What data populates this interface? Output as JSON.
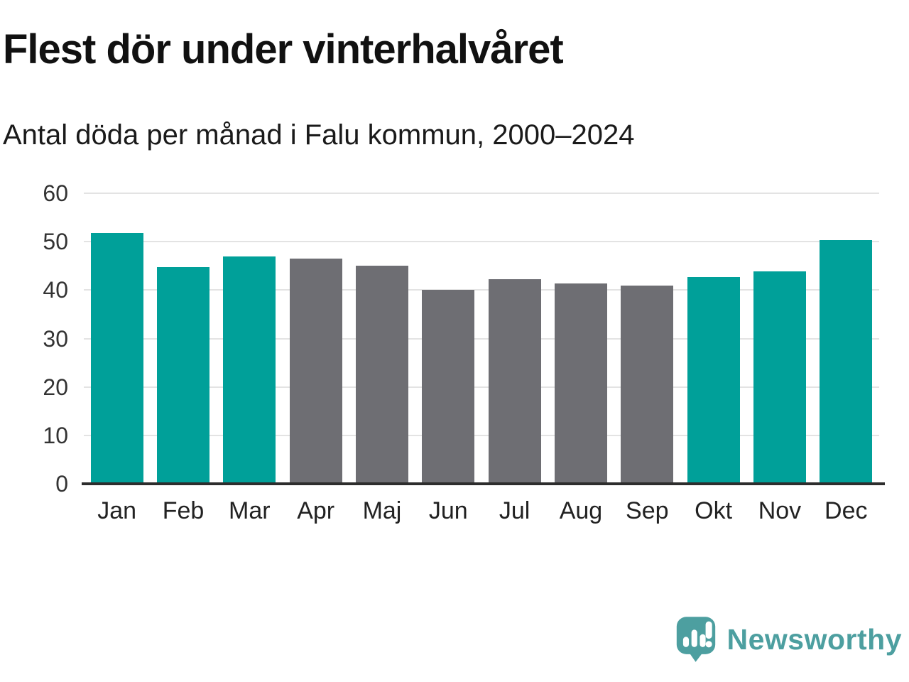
{
  "header": {
    "title": "Flest dör under vinterhalvåret",
    "subtitle": "Antal döda per månad i Falu kommun, 2000–2024"
  },
  "chart_data": {
    "type": "bar",
    "title": "Flest dör under vinterhalvåret",
    "subtitle": "Antal döda per månad i Falu kommun, 2000–2024",
    "categories": [
      "Jan",
      "Feb",
      "Mar",
      "Apr",
      "Maj",
      "Jun",
      "Jul",
      "Aug",
      "Sep",
      "Okt",
      "Nov",
      "Dec"
    ],
    "values": [
      51.8,
      44.7,
      46.9,
      46.5,
      45.0,
      40.1,
      42.3,
      41.3,
      41.0,
      42.7,
      43.8,
      50.3
    ],
    "bar_colors": [
      "teal",
      "teal",
      "teal",
      "gray",
      "gray",
      "gray",
      "gray",
      "gray",
      "gray",
      "teal",
      "teal",
      "teal"
    ],
    "colors": {
      "teal": "#00a099",
      "gray": "#6e6e73"
    },
    "xlabel": "",
    "ylabel": "",
    "ylim": [
      0,
      60
    ],
    "yticks": [
      0,
      10,
      20,
      30,
      40,
      50,
      60
    ],
    "grid": true,
    "legend": false
  },
  "footer": {
    "brand": "Newsworthy",
    "brand_color": "#4d9fa0"
  }
}
